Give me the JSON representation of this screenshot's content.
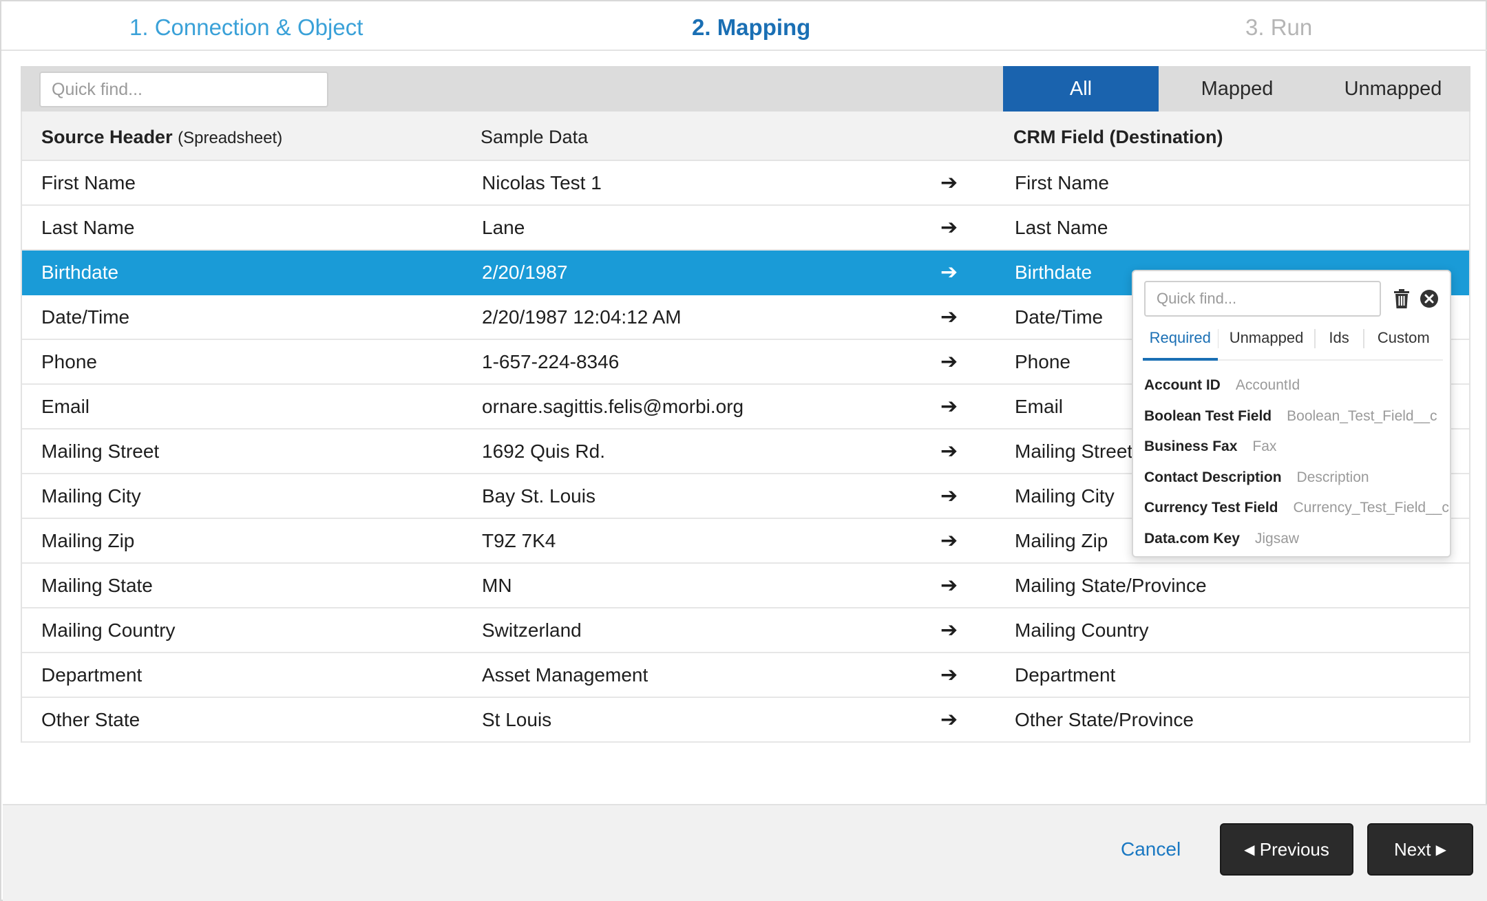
{
  "steps": [
    {
      "label": "1. Connection & Object"
    },
    {
      "label": "2. Mapping"
    },
    {
      "label": "3. Run"
    }
  ],
  "toolbar": {
    "quickfind_placeholder": "Quick find...",
    "filters": [
      "All",
      "Mapped",
      "Unmapped"
    ],
    "active_filter": "All"
  },
  "table": {
    "headers": {
      "source": "Source Header",
      "source_sub": "(Spreadsheet)",
      "sample": "Sample Data",
      "crm": "CRM Field (Destination)"
    },
    "arrow_glyph": "➔",
    "rows": [
      {
        "source": "First Name",
        "sample": "Nicolas Test 1",
        "dest": "First Name"
      },
      {
        "source": "Last Name",
        "sample": "Lane",
        "dest": "Last Name"
      },
      {
        "source": "Birthdate",
        "sample": "2/20/1987",
        "dest": "Birthdate"
      },
      {
        "source": "Date/Time",
        "sample": "2/20/1987 12:04:12 AM",
        "dest": "Date/Time"
      },
      {
        "source": "Phone",
        "sample": "1-657-224-8346",
        "dest": "Phone"
      },
      {
        "source": "Email",
        "sample": "ornare.sagittis.felis@morbi.org",
        "dest": "Email"
      },
      {
        "source": "Mailing Street",
        "sample": "1692 Quis Rd.",
        "dest": "Mailing Street"
      },
      {
        "source": "Mailing City",
        "sample": "Bay St. Louis",
        "dest": "Mailing City"
      },
      {
        "source": "Mailing Zip",
        "sample": "T9Z 7K4",
        "dest": "Mailing Zip"
      },
      {
        "source": "Mailing State",
        "sample": "MN",
        "dest": "Mailing State/Province"
      },
      {
        "source": "Mailing Country",
        "sample": "Switzerland",
        "dest": "Mailing Country"
      },
      {
        "source": "Department",
        "sample": "Asset Management",
        "dest": "Department"
      },
      {
        "source": "Other State",
        "sample": "St Louis",
        "dest": "Other State/Province"
      }
    ],
    "selected_row": "Birthdate"
  },
  "popup": {
    "quickfind_placeholder": "Quick find...",
    "tabs": [
      "Required",
      "Unmapped",
      "Ids",
      "Custom"
    ],
    "active_tab": "Required",
    "items": [
      {
        "label": "Account ID",
        "api": "AccountId"
      },
      {
        "label": "Boolean Test Field",
        "api": "Boolean_Test_Field__c"
      },
      {
        "label": "Business Fax",
        "api": "Fax"
      },
      {
        "label": "Contact Description",
        "api": "Description"
      },
      {
        "label": "Currency Test Field",
        "api": "Currency_Test_Field__c"
      },
      {
        "label": "Data.com Key",
        "api": "Jigsaw"
      }
    ]
  },
  "footer": {
    "cancel_label": "Cancel",
    "previous_label": "Previous",
    "next_label": "Next",
    "prev_glyph": "◀",
    "next_glyph": "▶"
  },
  "colors": {
    "accent": "#1a63ae",
    "selected_row": "#1a9bd7",
    "step_done": "#3aa1d8",
    "step_pending": "#b5b5b5",
    "button_dark": "#2b2b2b"
  }
}
